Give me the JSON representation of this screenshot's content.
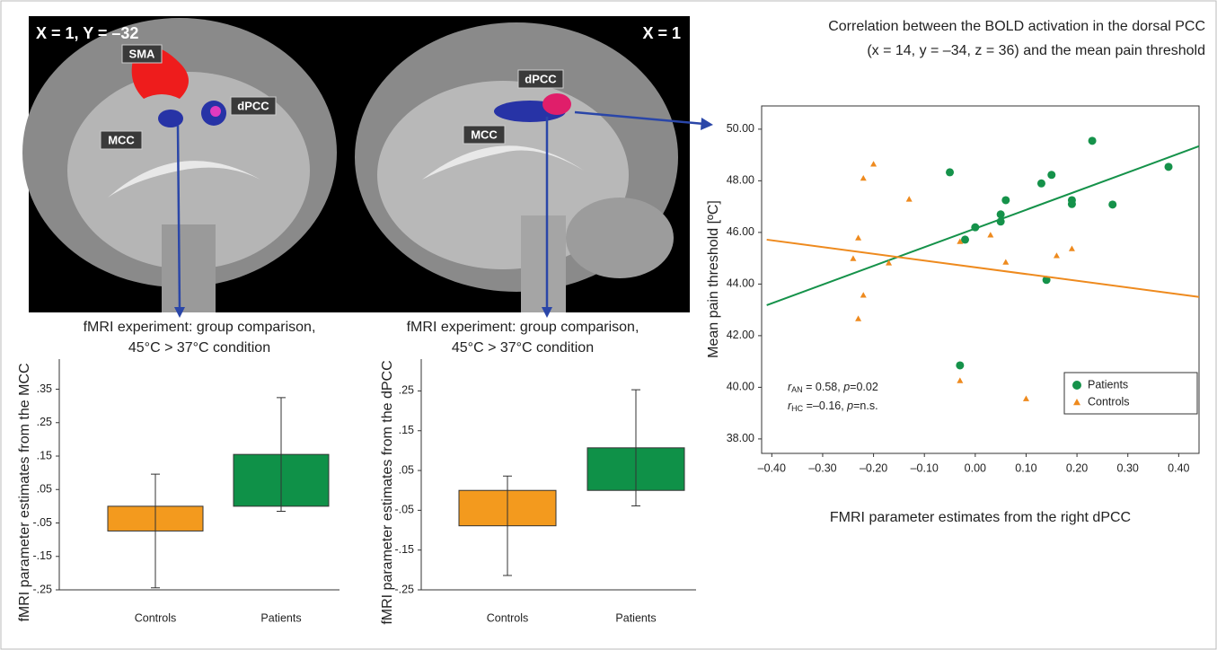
{
  "brain_images": [
    {
      "view": "X = 1, Y = –32",
      "regions": [
        "SMA",
        "dPCC",
        "MCC"
      ]
    },
    {
      "view": "X = 1",
      "regions": [
        "dPCC",
        "MCC"
      ]
    }
  ],
  "chart_data": [
    {
      "type": "bar",
      "title": [
        "fMRI experiment: group comparison,",
        "45°C > 37°C condition"
      ],
      "y_label": "fMRI parameter estimates from the MCC",
      "categories": [
        "Controls",
        "Patients"
      ],
      "values": [
        -0.074,
        0.155
      ],
      "errors": [
        0.17,
        0.17
      ],
      "colors": [
        "#f39a1e",
        "#0f9148"
      ],
      "ylim": [
        -0.25,
        0.44
      ],
      "yticks": [
        {
          "value": 0.35,
          "label": ".35"
        },
        {
          "value": 0.25,
          "label": ".25"
        },
        {
          "value": 0.15,
          "label": ".15"
        },
        {
          "value": 0.05,
          "label": ".05"
        },
        {
          "value": -0.05,
          "label": "-.05"
        },
        {
          "value": -0.15,
          "label": "-.15"
        },
        {
          "value": -0.25,
          "label": "-.25"
        }
      ]
    },
    {
      "type": "bar",
      "title": [
        "fMRI experiment: group comparison,",
        "45°C > 37°C condition"
      ],
      "y_label": "fMRI parameter estimates from the dPCC",
      "categories": [
        "Controls",
        "Patients"
      ],
      "values": [
        -0.089,
        0.107
      ],
      "errors": [
        0.125,
        0.146
      ],
      "colors": [
        "#f39a1e",
        "#0f9148"
      ],
      "ylim": [
        -0.25,
        0.33
      ],
      "yticks": [
        {
          "value": 0.25,
          "label": ".25"
        },
        {
          "value": 0.15,
          "label": ".15"
        },
        {
          "value": 0.05,
          "label": ".05"
        },
        {
          "value": -0.05,
          "label": "-.05"
        },
        {
          "value": -0.15,
          "label": "-.15"
        },
        {
          "value": -0.25,
          "label": "-.25"
        }
      ]
    },
    {
      "type": "scatter",
      "title": [
        "Correlation between the BOLD activation in the dorsal PCC",
        "(x = 14, y = –34, z = 36) and the mean pain threshold"
      ],
      "x_label": "FMRI parameter estimates from the right dPCC",
      "y_label": "Mean pain threshold [ºC]",
      "xlim": [
        -0.42,
        0.44
      ],
      "ylim": [
        37.44,
        50.9
      ],
      "xticks": [
        {
          "value": -0.4,
          "label": "–0.40"
        },
        {
          "value": -0.3,
          "label": "–0.30"
        },
        {
          "value": -0.2,
          "label": "–0.20"
        },
        {
          "value": -0.1,
          "label": "–0.10"
        },
        {
          "value": 0,
          "label": "0.00"
        },
        {
          "value": 0.1,
          "label": "0.10"
        },
        {
          "value": 0.2,
          "label": "0.20"
        },
        {
          "value": 0.3,
          "label": "0.30"
        },
        {
          "value": 0.4,
          "label": "0.40"
        }
      ],
      "yticks": [
        {
          "value": 38,
          "label": "38.00"
        },
        {
          "value": 40,
          "label": "40.00"
        },
        {
          "value": 42,
          "label": "42.00"
        },
        {
          "value": 44,
          "label": "44.00"
        },
        {
          "value": 46,
          "label": "46.00"
        },
        {
          "value": 48,
          "label": "48.00"
        },
        {
          "value": 50,
          "label": "50.00"
        }
      ],
      "legend": "lower right",
      "series": [
        {
          "name": "Patients",
          "color": "#15924a",
          "marker": "circle",
          "x": [
            -0.05,
            -0.03,
            -0.02,
            0.0,
            0.06,
            0.05,
            0.05,
            0.13,
            0.15,
            0.14,
            0.19,
            0.19,
            0.23,
            0.27,
            0.38
          ],
          "y": [
            48.33,
            40.85,
            45.72,
            46.2,
            47.25,
            46.42,
            46.7,
            47.9,
            48.23,
            44.16,
            47.1,
            47.25,
            49.55,
            47.08,
            48.54
          ],
          "fit_x": [
            -0.41,
            0.44
          ],
          "fit_y": [
            43.18,
            49.34
          ]
        },
        {
          "name": "Controls",
          "color": "#ee8a1e",
          "marker": "triangle",
          "x": [
            -0.22,
            -0.2,
            -0.13,
            -0.23,
            -0.24,
            -0.17,
            -0.03,
            0.03,
            0.06,
            0.16,
            0.19,
            -0.22,
            -0.23,
            -0.03,
            0.1
          ],
          "y": [
            48.1,
            48.65,
            47.29,
            45.79,
            44.99,
            44.82,
            45.65,
            45.9,
            44.85,
            45.1,
            45.37,
            43.57,
            42.66,
            40.26,
            39.56
          ],
          "fit_x": [
            -0.41,
            0.44
          ],
          "fit_y": [
            45.72,
            43.5
          ]
        }
      ],
      "annotations": [
        [
          "r",
          "AN",
          " = 0.58, ",
          "p",
          "=0.02"
        ],
        [
          "r",
          "HC",
          " =–0.16, ",
          "p",
          "=n.s."
        ]
      ]
    }
  ]
}
